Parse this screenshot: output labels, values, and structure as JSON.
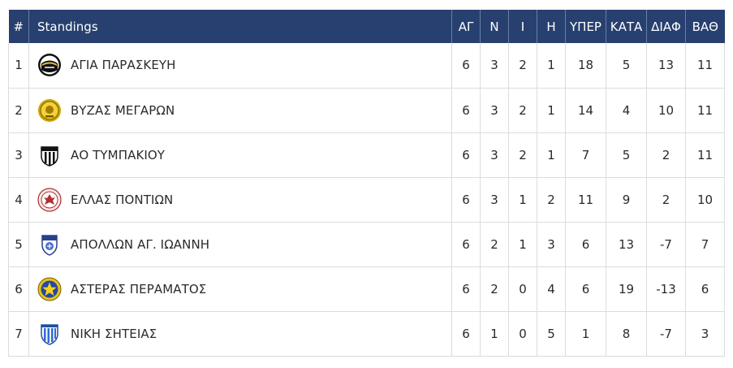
{
  "table": {
    "headers": {
      "pos": "#",
      "team": "Standings",
      "played": "ΑΓ",
      "wins": "Ν",
      "draws": "Ι",
      "losses": "Η",
      "goals_for": "ΥΠΕΡ",
      "goals_against": "ΚΑΤΑ",
      "goal_diff": "ΔΙΑΦ",
      "points": "ΒΑΘ"
    },
    "rows": [
      {
        "pos": "1",
        "team": "ΑΓΙΑ ΠΑΡΑΣΚΕΥΗ",
        "crest_icon": "agia-paraskevi-crest-icon",
        "played": "6",
        "wins": "3",
        "draws": "2",
        "losses": "1",
        "goals_for": "18",
        "goals_against": "5",
        "goal_diff": "13",
        "points": "11"
      },
      {
        "pos": "2",
        "team": "ΒΥΖΑΣ ΜΕΓΑΡΩΝ",
        "crest_icon": "vyzas-megaron-crest-icon",
        "played": "6",
        "wins": "3",
        "draws": "2",
        "losses": "1",
        "goals_for": "14",
        "goals_against": "4",
        "goal_diff": "10",
        "points": "11"
      },
      {
        "pos": "3",
        "team": "ΑΟ ΤΥΜΠΑΚΙΟΥ",
        "crest_icon": "ao-tympakiou-crest-icon",
        "played": "6",
        "wins": "3",
        "draws": "2",
        "losses": "1",
        "goals_for": "7",
        "goals_against": "5",
        "goal_diff": "2",
        "points": "11"
      },
      {
        "pos": "4",
        "team": "ΕΛΛΑΣ ΠΟΝΤΙΩΝ",
        "crest_icon": "ellas-pontion-crest-icon",
        "played": "6",
        "wins": "3",
        "draws": "1",
        "losses": "2",
        "goals_for": "11",
        "goals_against": "9",
        "goal_diff": "2",
        "points": "10"
      },
      {
        "pos": "5",
        "team": "ΑΠΟΛΛΩΝ ΑΓ. ΙΩΑΝΝΗ",
        "crest_icon": "apollon-ag-ioanni-crest-icon",
        "played": "6",
        "wins": "2",
        "draws": "1",
        "losses": "3",
        "goals_for": "6",
        "goals_against": "13",
        "goal_diff": "-7",
        "points": "7"
      },
      {
        "pos": "6",
        "team": "ΑΣΤΕΡΑΣ ΠΕΡΑΜΑΤΟΣ",
        "crest_icon": "asteras-peramatos-crest-icon",
        "played": "6",
        "wins": "2",
        "draws": "0",
        "losses": "4",
        "goals_for": "6",
        "goals_against": "19",
        "goal_diff": "-13",
        "points": "6"
      },
      {
        "pos": "7",
        "team": "ΝΙΚΗ ΣΗΤΕΙΑΣ",
        "crest_icon": "niki-siteias-crest-icon",
        "played": "6",
        "wins": "1",
        "draws": "0",
        "losses": "5",
        "goals_for": "1",
        "goals_against": "8",
        "goal_diff": "-7",
        "points": "3"
      }
    ]
  },
  "colors": {
    "header_bg": "#27406f",
    "header_text": "#ffffff",
    "border": "#dcdcdc",
    "text": "#2a2a2a"
  }
}
